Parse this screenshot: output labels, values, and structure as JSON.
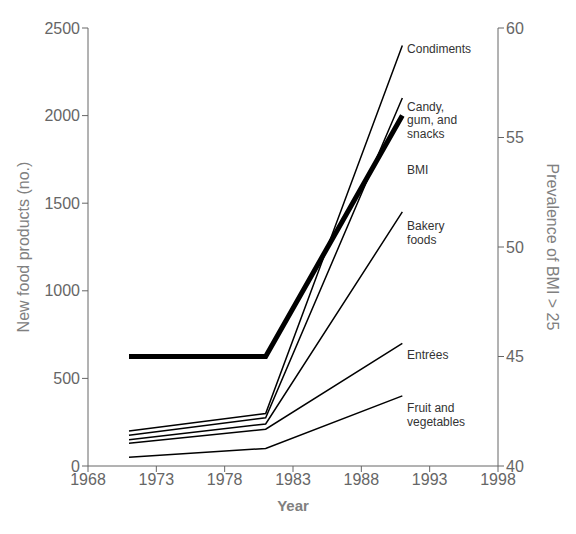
{
  "chart_data": {
    "type": "line",
    "xlabel": "Year",
    "ylabel": "New food products (no.)",
    "y2label": "Prevalence of BMI > 25",
    "x": [
      1971,
      1981,
      1991
    ],
    "series": [
      {
        "color": "#000000",
        "values": [
          200,
          300,
          2400
        ]
      },
      {
        "color": "#000000",
        "values": [
          175,
          275,
          2100
        ]
      },
      {
        "color": "#000000",
        "values": [
          150,
          240,
          1450
        ]
      },
      {
        "color": "#000000",
        "values": [
          130,
          210,
          700
        ]
      },
      {
        "color": "#000000",
        "values": [
          50,
          100,
          400
        ]
      },
      {
        "color": "#000000",
        "values": [
          45.0,
          45.0,
          56.0
        ],
        "axis": "y2"
      }
    ],
    "xlim": [
      1968,
      1998
    ],
    "xticks": [
      1968,
      1973,
      1978,
      1983,
      1988,
      1993,
      1998
    ],
    "ylim": [
      0,
      2500
    ],
    "yticks": [
      0,
      500,
      1000,
      1500,
      2000,
      2500
    ],
    "y2lim": [
      40,
      60
    ],
    "y2ticks": [
      40,
      45,
      50,
      55,
      60
    ],
    "grid": false,
    "annotations": [
      {
        "x": 1991.2,
        "y": 2420,
        "text": "Condiments"
      },
      {
        "x": 1991.2,
        "y": 2090,
        "text": "Candy,\ngum, and\nsnacks"
      },
      {
        "x": 1991.2,
        "y": 1730,
        "text": "BMI"
      },
      {
        "x": 1991.2,
        "y": 1410,
        "text": "Bakery\nfoods"
      },
      {
        "x": 1991.2,
        "y": 670,
        "text": "Entrées"
      },
      {
        "x": 1991.2,
        "y": 370,
        "text": "Fruit and\nvegetables"
      }
    ]
  }
}
